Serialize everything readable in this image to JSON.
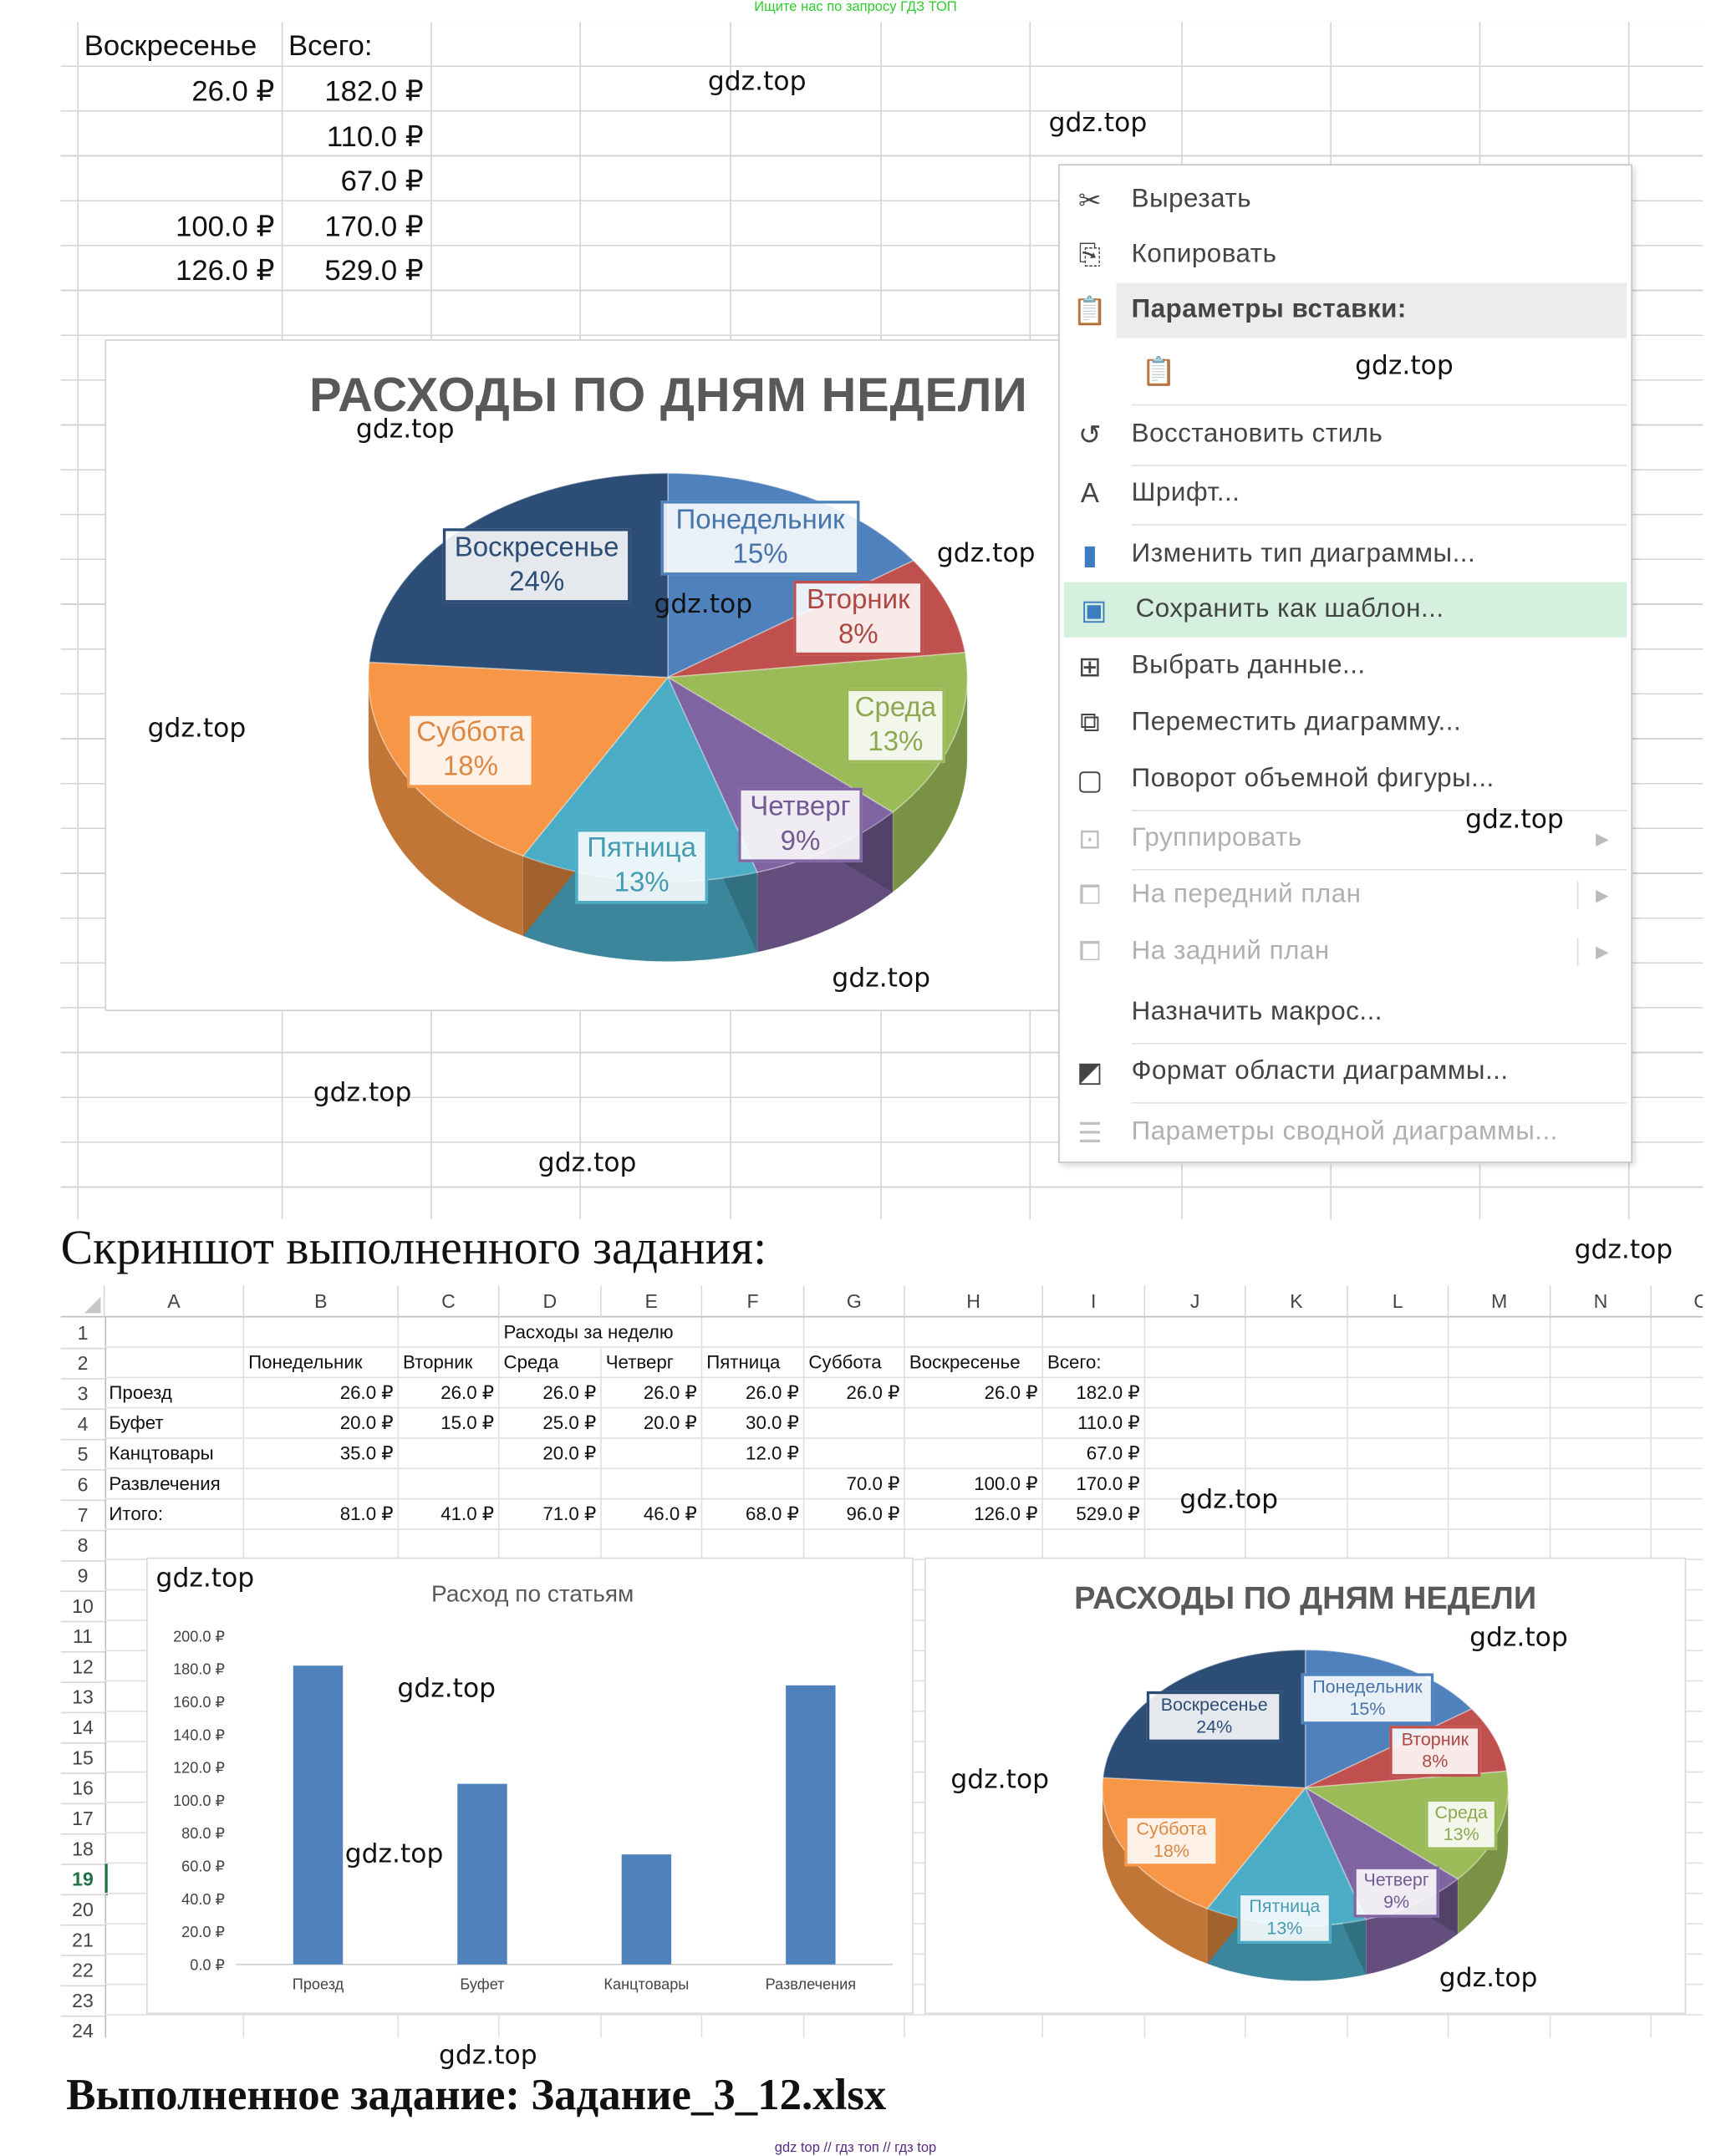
{
  "top_note": "Ищите нас по запросу ГДЗ ТОП",
  "footer_note": "gdz top  //  гдз топ  //  гдз top",
  "watermark": "gdz.top",
  "top_sheet": {
    "headers": [
      "Воскресенье",
      "Всего:"
    ],
    "rows": [
      [
        "26.0 ₽",
        "182.0 ₽"
      ],
      [
        "",
        "110.0 ₽"
      ],
      [
        "",
        "67.0 ₽"
      ],
      [
        "100.0 ₽",
        "170.0 ₽"
      ],
      [
        "126.0 ₽",
        "529.0 ₽"
      ]
    ]
  },
  "context_menu": {
    "items": [
      {
        "label": "Вырезать",
        "icon": "scissors-icon",
        "enabled": true
      },
      {
        "label": "Копировать",
        "icon": "copy-icon",
        "enabled": true
      },
      {
        "label": "Параметры вставки:",
        "icon": "paste-icon",
        "enabled": true,
        "header": true
      },
      {
        "label": "",
        "icon": "paste-option-icon",
        "enabled": true
      },
      {
        "label": "Восстановить стиль",
        "icon": "reset-style-icon",
        "enabled": true
      },
      {
        "label": "Шрифт...",
        "icon": "font-icon",
        "enabled": true
      },
      {
        "label": "Изменить тип диаграммы...",
        "icon": "chart-type-icon",
        "enabled": true
      },
      {
        "label": "Сохранить как шаблон...",
        "icon": "save-template-icon",
        "enabled": true,
        "highlighted": true
      },
      {
        "label": "Выбрать данные...",
        "icon": "select-data-icon",
        "enabled": true
      },
      {
        "label": "Переместить диаграмму...",
        "icon": "move-chart-icon",
        "enabled": true
      },
      {
        "label": "Поворот объемной фигуры...",
        "icon": "3d-rotation-icon",
        "enabled": true
      },
      {
        "label": "Группировать",
        "icon": "group-icon",
        "enabled": false,
        "submenu": true
      },
      {
        "label": "На передний план",
        "icon": "bring-forward-icon",
        "enabled": false,
        "submenu": true
      },
      {
        "label": "На задний план",
        "icon": "send-backward-icon",
        "enabled": false,
        "submenu": true
      },
      {
        "label": "Назначить макрос...",
        "icon": "",
        "enabled": true
      },
      {
        "label": "Формат области диаграммы...",
        "icon": "format-chart-area-icon",
        "enabled": true
      },
      {
        "label": "Параметры сводной диаграммы...",
        "icon": "pivot-chart-options-icon",
        "enabled": false
      }
    ]
  },
  "heading_screenshot": "Скриншот выполненного задания:",
  "heading_file": "Выполненное задание: Задание_3_12.xlsx",
  "sheet": {
    "columns": [
      "A",
      "B",
      "C",
      "D",
      "E",
      "F",
      "G",
      "H",
      "I",
      "J",
      "K",
      "L",
      "M",
      "N",
      "O"
    ],
    "row_numbers": [
      "1",
      "2",
      "3",
      "4",
      "5",
      "6",
      "7",
      "8",
      "9",
      "10",
      "11",
      "12",
      "13",
      "14",
      "15",
      "16",
      "17",
      "18",
      "19",
      "20",
      "21",
      "22",
      "23",
      "24"
    ],
    "selected_row": "19",
    "title": "Расходы за неделю",
    "header_row": [
      "",
      "Понедельник",
      "Вторник",
      "Среда",
      "Четверг",
      "Пятница",
      "Суббота",
      "Воскресенье",
      "Всего:"
    ],
    "rows": [
      [
        "Проезд",
        "26.0 ₽",
        "26.0 ₽",
        "26.0 ₽",
        "26.0 ₽",
        "26.0 ₽",
        "26.0 ₽",
        "26.0 ₽",
        "182.0 ₽"
      ],
      [
        "Буфет",
        "20.0 ₽",
        "15.0 ₽",
        "25.0 ₽",
        "20.0 ₽",
        "30.0 ₽",
        "",
        "",
        "110.0 ₽"
      ],
      [
        "Канцтовары",
        "35.0 ₽",
        "",
        "20.0 ₽",
        "",
        "12.0 ₽",
        "",
        "",
        "67.0 ₽"
      ],
      [
        "Развлечения",
        "",
        "",
        "",
        "",
        "",
        "70.0 ₽",
        "100.0 ₽",
        "170.0 ₽"
      ],
      [
        "Итого:",
        "81.0 ₽",
        "41.0 ₽",
        "71.0 ₽",
        "46.0 ₽",
        "68.0 ₽",
        "96.0 ₽",
        "126.0 ₽",
        "529.0 ₽"
      ]
    ]
  },
  "chart_data": [
    {
      "type": "pie",
      "title": "РАСХОДЫ ПО ДНЯМ НЕДЕЛИ",
      "style": "3d",
      "categories": [
        "Понедельник",
        "Вторник",
        "Среда",
        "Четверг",
        "Пятница",
        "Суббота",
        "Воскресенье"
      ],
      "values": [
        81,
        41,
        71,
        46,
        68,
        96,
        126
      ],
      "percent_labels": [
        "15%",
        "8%",
        "13%",
        "9%",
        "13%",
        "18%",
        "24%"
      ],
      "colors": [
        "#4f81bd",
        "#c0504d",
        "#9bbb59",
        "#8064a2",
        "#4bacc6",
        "#f79646",
        "#2c4d75"
      ]
    },
    {
      "type": "bar",
      "title": "Расход по статьям",
      "categories": [
        "Проезд",
        "Буфет",
        "Канцтовары",
        "Развлечения"
      ],
      "values": [
        182,
        110,
        67,
        170
      ],
      "ylim": [
        0,
        200
      ],
      "yticks": [
        "0.0 ₽",
        "20.0 ₽",
        "40.0 ₽",
        "60.0 ₽",
        "80.0 ₽",
        "100.0 ₽",
        "120.0 ₽",
        "140.0 ₽",
        "160.0 ₽",
        "180.0 ₽",
        "200.0 ₽"
      ],
      "color": "#4f81bd",
      "grid": false
    },
    {
      "type": "pie",
      "title": "РАСХОДЫ ПО ДНЯМ НЕДЕЛИ",
      "style": "3d",
      "categories": [
        "Понедельник",
        "Вторник",
        "Среда",
        "Четверг",
        "Пятница",
        "Суббота",
        "Воскресенье"
      ],
      "values": [
        81,
        41,
        71,
        46,
        68,
        96,
        126
      ],
      "percent_labels": [
        "15%",
        "8%",
        "13%",
        "9%",
        "13%",
        "18%",
        "24%"
      ],
      "colors": [
        "#4f81bd",
        "#c0504d",
        "#9bbb59",
        "#8064a2",
        "#4bacc6",
        "#f79646",
        "#2c4d75"
      ]
    }
  ]
}
